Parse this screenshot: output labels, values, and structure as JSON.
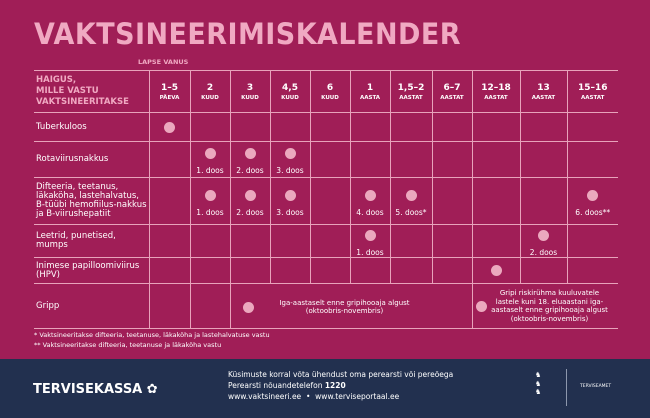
{
  "title": "VAKTSINEERIMISKALENDER",
  "age_label": "LAPSE VANUS",
  "header_first": [
    "HAIGUS,",
    "MILLE VASTU",
    "VAKTSINEERITAKSE"
  ],
  "ages": [
    {
      "n": "1–5",
      "u": "PÄEVA"
    },
    {
      "n": "2",
      "u": "KUUD"
    },
    {
      "n": "3",
      "u": "KUUD"
    },
    {
      "n": "4,5",
      "u": "KUUD"
    },
    {
      "n": "6",
      "u": "KUUD"
    },
    {
      "n": "1",
      "u": "AASTA"
    },
    {
      "n": "1,5–2",
      "u": "AASTAT"
    },
    {
      "n": "6–7",
      "u": "AASTAT"
    },
    {
      "n": "12–18",
      "u": "AASTAT"
    },
    {
      "n": "13",
      "u": "AASTAT"
    },
    {
      "n": "15–16",
      "u": "AASTAT"
    }
  ],
  "rows": [
    {
      "disease": "Tuberkuloos",
      "doses": {
        "0": ""
      }
    },
    {
      "disease": "Rotaviirusnakkus",
      "doses": {
        "1": "1. doos",
        "2": "2. doos",
        "3": "3. doos"
      }
    },
    {
      "disease": "Difteeria, teetanus, läkaköha, lastehalvatus, B-tüübi hemofiilus-nakkus ja B-viirushepatiit",
      "doses": {
        "1": "1. doos",
        "2": "2. doos",
        "3": "3. doos",
        "5": "4. doos",
        "6": "5. doos*",
        "10": "6. doos**"
      }
    },
    {
      "disease": "Leetrid, punetised, mumps",
      "doses": {
        "5": "1. doos",
        "9": "2. doos"
      }
    },
    {
      "disease": "Inimese papilloomiviirus (HPV)",
      "doses": {
        "8": ""
      }
    }
  ],
  "gripp": {
    "disease": "Gripp",
    "text1": "Iga-aastaselt enne gripihooaja algust (oktoobris-novembris)",
    "text2": "Gripi riskirühma kuuluvatele lastele kuni 18. eluaastani iga-aastaselt enne gripihooaja algust (oktoobris-novembris)"
  },
  "footnotes": [
    "* Vaktsineeritakse difteeria, teetanuse, läkaköha ja lastehalvatuse vastu",
    "** Vaktsineeritakse difteeria, teetanuse ja läkaköha vastu"
  ],
  "footer": {
    "brand": "TERVISEKASSA",
    "line1": "Küsimuste korral võta ühendust oma perearsti või pereõega",
    "line2": "Perearsti nõuandetelefon ",
    "phone": "1220",
    "link1": "www.vaktsineeri.ee",
    "bullet": "•",
    "link2": "www.terviseportaal.ee",
    "agency": "TERVISEAMET"
  },
  "colors": {
    "background": "#a01e57",
    "accent": "#eba8be",
    "footer": "#22304f"
  }
}
